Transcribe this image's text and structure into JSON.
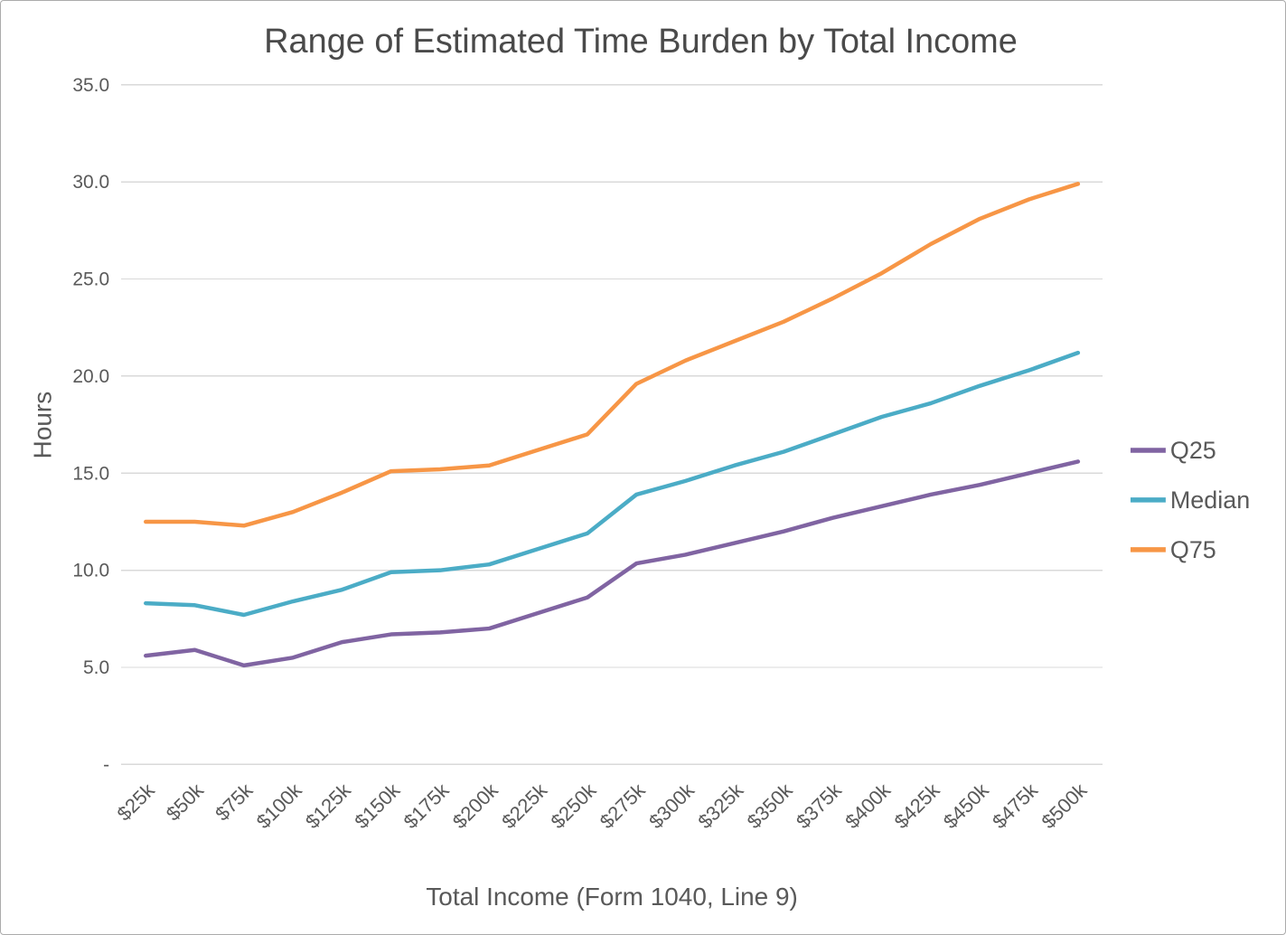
{
  "chart_data": {
    "type": "line",
    "title": "Range of Estimated Time Burden by Total Income",
    "xlabel": "Total Income (Form 1040, Line 9)",
    "ylabel": "Hours",
    "categories": [
      "$25k",
      "$50k",
      "$75k",
      "$100k",
      "$125k",
      "$150k",
      "$175k",
      "$200k",
      "$225k",
      "$250k",
      "$275k",
      "$300k",
      "$325k",
      "$350k",
      "$375k",
      "$400k",
      "$425k",
      "$450k",
      "$475k",
      "$500k"
    ],
    "series": [
      {
        "name": "Q25",
        "color": "#8064A2",
        "values": [
          5.6,
          5.9,
          5.1,
          5.5,
          6.3,
          6.7,
          6.8,
          7.0,
          7.8,
          8.6,
          10.35,
          10.8,
          11.4,
          12.0,
          12.7,
          13.3,
          13.9,
          14.4,
          15.0,
          15.6
        ]
      },
      {
        "name": "Median",
        "color": "#4BACC6",
        "values": [
          8.3,
          8.2,
          7.7,
          8.4,
          9.0,
          9.9,
          10.0,
          10.3,
          11.1,
          11.9,
          13.9,
          14.6,
          15.4,
          16.1,
          17.0,
          17.9,
          18.6,
          19.5,
          20.3,
          21.2
        ]
      },
      {
        "name": "Q75",
        "color": "#F79646",
        "values": [
          12.5,
          12.5,
          12.3,
          13.0,
          14.0,
          15.1,
          15.2,
          15.4,
          16.2,
          17.0,
          19.6,
          20.8,
          21.8,
          22.8,
          24.0,
          25.3,
          26.8,
          28.1,
          29.1,
          29.9
        ]
      }
    ],
    "ylim": [
      0,
      35
    ],
    "ytick_step": 5,
    "ytick_labels_bottom_to_top": [
      "-",
      "5.0",
      "10.0",
      "15.0",
      "20.0",
      "25.0",
      "30.0",
      "35.0"
    ],
    "grid": true,
    "legend_position": "right",
    "legend_entries": [
      "Q25",
      "Median",
      "Q75"
    ]
  },
  "colors": {
    "gridline": "#D9D9D9",
    "axis_text": "#595959",
    "title_text": "#4A4A4A",
    "frame_border": "#ABABAB",
    "background": "#FFFFFF"
  }
}
